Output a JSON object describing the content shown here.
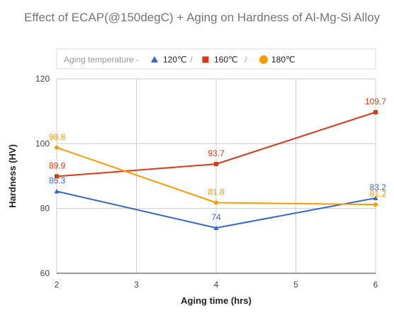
{
  "chart_data": {
    "type": "line",
    "title": "Effect of ECAP(@150degC) + Aging on Hardness of Al-Mg-Si Alloy",
    "xlabel": "Aging time (hrs)",
    "ylabel": "Hardness (HV)",
    "x_ticks": [
      2,
      3,
      4,
      5,
      6
    ],
    "y_ticks": [
      60,
      80,
      100,
      120
    ],
    "xlim": [
      2,
      6
    ],
    "ylim": [
      60,
      120
    ],
    "grid": true,
    "legend": {
      "position": "top",
      "title": "Aging temperature -",
      "separator": "/"
    },
    "series": [
      {
        "name": "120℃",
        "color": "#3366cc",
        "marker": "triangle",
        "points": [
          {
            "x": 2,
            "y": 85.3,
            "label": "85.3"
          },
          {
            "x": 4,
            "y": 74,
            "label": "74"
          },
          {
            "x": 6,
            "y": 83.2,
            "label": "83.2"
          }
        ]
      },
      {
        "name": "160℃",
        "color": "#dc3912",
        "marker": "square",
        "points": [
          {
            "x": 2,
            "y": 89.9,
            "label": "89.9"
          },
          {
            "x": 4,
            "y": 93.7,
            "label": "93.7"
          },
          {
            "x": 6,
            "y": 109.7,
            "label": "109.7"
          }
        ]
      },
      {
        "name": "180℃",
        "color": "#ff9900",
        "marker": "circle",
        "points": [
          {
            "x": 2,
            "y": 98.8,
            "label": "98.8"
          },
          {
            "x": 4,
            "y": 81.8,
            "label": "81.8"
          },
          {
            "x": 6,
            "y": 81.2,
            "label": "81.2"
          }
        ]
      }
    ]
  }
}
